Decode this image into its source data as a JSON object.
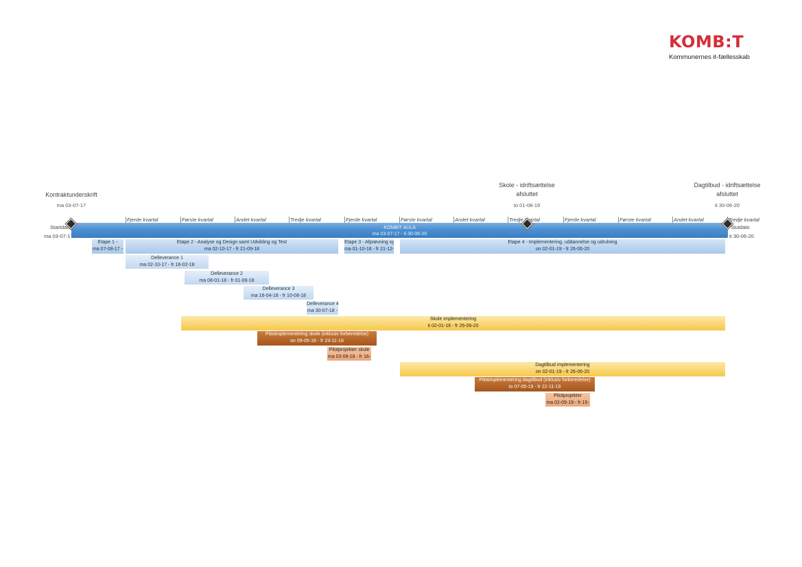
{
  "logo": {
    "word_left": "KOMB",
    "word_colon": ":",
    "word_right": "T",
    "tagline": "Kommunernes it-fællesskab"
  },
  "milestones": {
    "contract": {
      "title": "Kontraktunderskrift",
      "date": "ma 03-07-17"
    },
    "school": {
      "title_line1": "Skole - idriftsættelse",
      "title_line2": "afsluttet",
      "date": "to 01-08-19"
    },
    "daycare": {
      "title_line1": "Dagtilbud - idriftsættelse",
      "title_line2": "afsluttet",
      "date": "ti 30-06-20"
    }
  },
  "quarters": [
    "Fjerde kvartal",
    "Første kvartal",
    "Andet kvartal",
    "Tredje kvartal",
    "Fjerde kvartal",
    "Første kvartal",
    "Andet kvartal",
    "Tredje kvartal",
    "Fjerde kvartal",
    "Første kvartal",
    "Andet kvartal",
    "Tredje kvartal"
  ],
  "start": {
    "label": "Startdato",
    "date": "ma 03-07-17"
  },
  "end": {
    "label": "Slutdato",
    "date": "ti 30-06-20"
  },
  "main_bar": {
    "name": "KOMBIT AULA",
    "dates": "ma 03-07-17 - ti 30-06-20"
  },
  "tasks": [
    {
      "name": "Etape 1 -",
      "dates": "ma 07-08-17 -"
    },
    {
      "name": "Etape 2 - Analyse og Design samt Udvikling og Test",
      "dates": "ma 02-10-17 - fr 21-09-18"
    },
    {
      "name": "Etape 3 - Afprøvning og",
      "dates": "ma 01-10-18 - fr 21-12-"
    },
    {
      "name": "Etape 4 - Implementering, uddannelse og udrulning",
      "dates": "on 02-01-19 - fr 26-06-20"
    },
    {
      "name": "Delleverance 1",
      "dates": "ma 02-10-17 - fr 16-02-18"
    },
    {
      "name": "Delleverance 2",
      "dates": "ma 08-01-18 - fr 01-06-18"
    },
    {
      "name": "Delleverance 3",
      "dates": "ma 16-04-18 - fr 10-08-18"
    },
    {
      "name": "Delleverance 4",
      "dates": "ma 30-07-18 -"
    },
    {
      "name": "Skole implementering",
      "dates": "ti 02-01-18 - fr 26-06-20"
    },
    {
      "name": "Pilotimplementering skole (inklusiv forberedelse)",
      "dates": "on 09-05-18 - fr 23-11-18"
    },
    {
      "name": "Pilotprojekter skole",
      "dates": "ma 03-09-18 - fr 16-"
    },
    {
      "name": "Dagtilbud implementering",
      "dates": "on 02-01-19 - fr 26-06-20"
    },
    {
      "name": "Pilotimplementering dagtilbud (inklusiv forberedelse)",
      "dates": "to 07-05-19 - fr 22-11-19"
    },
    {
      "name": "Pilotprojekter",
      "dates": "ma 02-09-19 - fr 15-"
    }
  ]
}
